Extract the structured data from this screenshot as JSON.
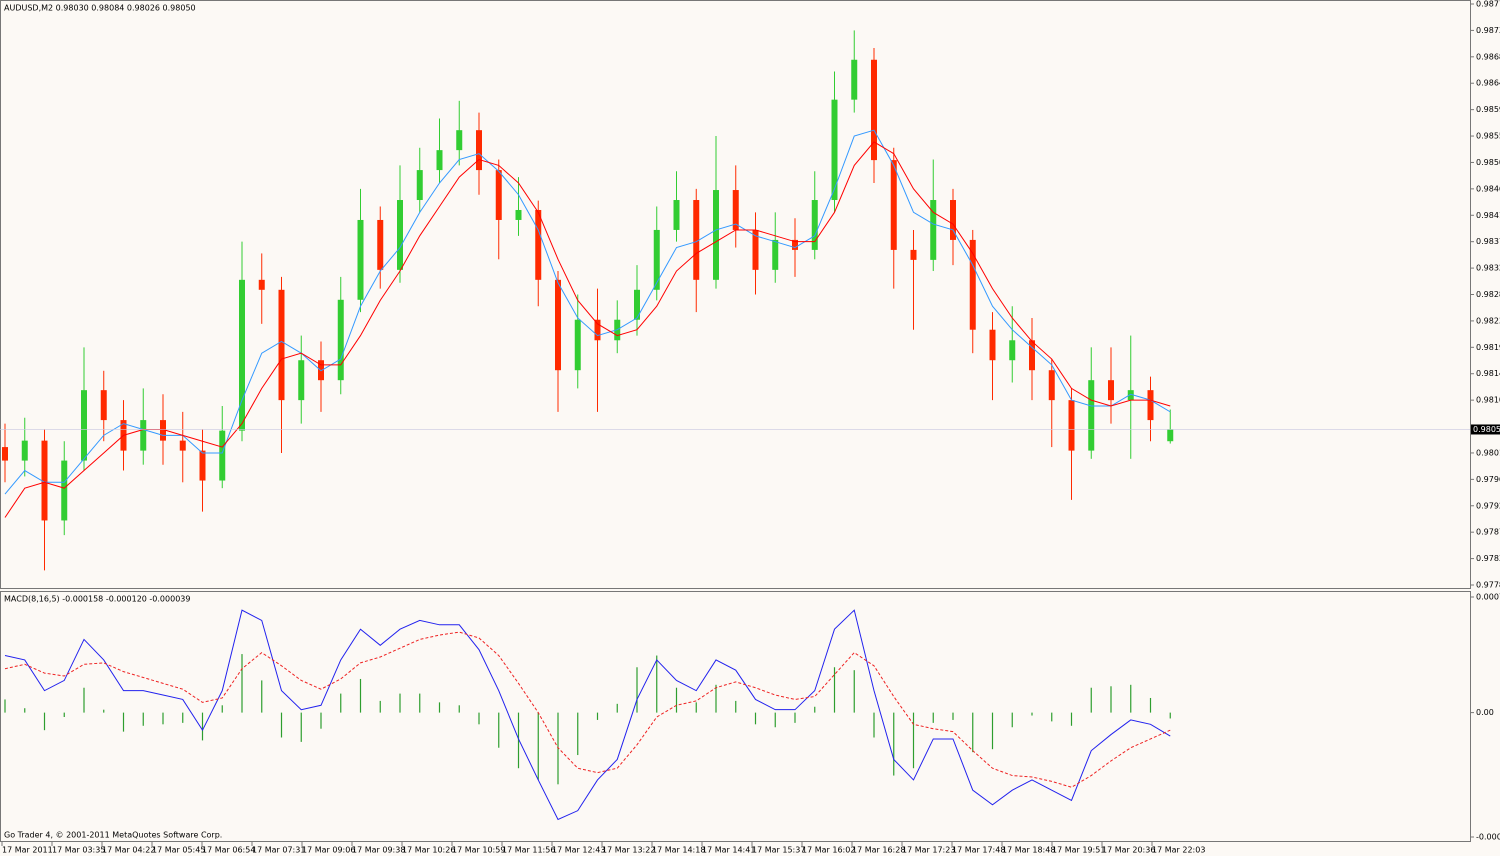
{
  "chart_data": [
    {
      "type": "candlestick",
      "title": "AUDUSD,M2  0.98030 0.98084 0.98026 0.98050",
      "up_color": "#32cd32",
      "down_color": "#ff2a00",
      "open": [
        0.9802,
        0.97997,
        0.98031,
        0.97895,
        0.97997,
        0.98117,
        0.98066,
        0.98014,
        0.98066,
        0.98031,
        0.98014,
        0.97963,
        0.98048,
        0.98305,
        0.98288,
        0.981,
        0.98168,
        0.98134,
        0.98271,
        0.98407,
        0.98322,
        0.98441,
        0.98492,
        0.98526,
        0.9856,
        0.98492,
        0.98407,
        0.98424,
        0.98305,
        0.98151,
        0.98237,
        0.98202,
        0.98237,
        0.98288,
        0.9839,
        0.98441,
        0.98305,
        0.98458,
        0.9839,
        0.98322,
        0.98373,
        0.98356,
        0.98441,
        0.98612,
        0.9868,
        0.98509,
        0.98356,
        0.98339,
        0.98441,
        0.98373,
        0.9822,
        0.98168,
        0.98202,
        0.98151,
        0.981,
        0.98014,
        0.98134,
        0.981,
        0.98117,
        0.9803
      ],
      "high": [
        0.9806,
        0.9807,
        0.9805,
        0.9803,
        0.9819,
        0.9815,
        0.981,
        0.9812,
        0.9811,
        0.9808,
        0.9805,
        0.9809,
        0.9837,
        0.9835,
        0.9831,
        0.9821,
        0.982,
        0.9831,
        0.9846,
        0.9843,
        0.985,
        0.9853,
        0.9858,
        0.9861,
        0.9859,
        0.9851,
        0.9848,
        0.9844,
        0.9832,
        0.9828,
        0.9829,
        0.9827,
        0.9833,
        0.9843,
        0.9849,
        0.9846,
        0.9855,
        0.985,
        0.9842,
        0.9842,
        0.9841,
        0.9849,
        0.9866,
        0.9873,
        0.987,
        0.9853,
        0.9839,
        0.9851,
        0.9846,
        0.9839,
        0.9825,
        0.9826,
        0.9824,
        0.9817,
        0.9812,
        0.9819,
        0.9819,
        0.9821,
        0.9814,
        0.98084
      ],
      "low": [
        0.9796,
        0.9797,
        0.9781,
        0.9787,
        0.9798,
        0.9803,
        0.9798,
        0.9799,
        0.9799,
        0.9796,
        0.9791,
        0.9795,
        0.9803,
        0.9823,
        0.9801,
        0.9806,
        0.9808,
        0.9811,
        0.9825,
        0.9829,
        0.983,
        0.9842,
        0.9847,
        0.985,
        0.9845,
        0.9834,
        0.9838,
        0.9826,
        0.9808,
        0.9812,
        0.9808,
        0.9818,
        0.9821,
        0.9827,
        0.9837,
        0.9825,
        0.9829,
        0.9836,
        0.9828,
        0.983,
        0.9831,
        0.9834,
        0.9842,
        0.9859,
        0.9847,
        0.9829,
        0.9822,
        0.9832,
        0.9833,
        0.9818,
        0.981,
        0.9813,
        0.981,
        0.9802,
        0.9793,
        0.98,
        0.9806,
        0.98,
        0.9803,
        0.98026
      ],
      "close": [
        0.97997,
        0.98031,
        0.97895,
        0.97997,
        0.98117,
        0.98066,
        0.98014,
        0.98066,
        0.98031,
        0.98014,
        0.97963,
        0.98048,
        0.98305,
        0.98288,
        0.981,
        0.98168,
        0.98134,
        0.98271,
        0.98407,
        0.98322,
        0.98441,
        0.98492,
        0.98526,
        0.9856,
        0.98492,
        0.98407,
        0.98424,
        0.98305,
        0.98151,
        0.98237,
        0.98202,
        0.98237,
        0.98288,
        0.9839,
        0.98441,
        0.98305,
        0.98458,
        0.9839,
        0.98322,
        0.98373,
        0.98356,
        0.98441,
        0.98612,
        0.9868,
        0.98509,
        0.98356,
        0.98339,
        0.98441,
        0.98373,
        0.9822,
        0.98168,
        0.98202,
        0.98151,
        0.981,
        0.98014,
        0.98134,
        0.981,
        0.98117,
        0.98066,
        0.9805
      ],
      "lines": [
        {
          "color": "#3399ff",
          "values": [
            0.9794,
            0.9798,
            0.9796,
            0.9796,
            0.98,
            0.9804,
            0.9806,
            0.9805,
            0.9804,
            0.9804,
            0.9801,
            0.9801,
            0.981,
            0.9818,
            0.982,
            0.9818,
            0.9815,
            0.9817,
            0.9826,
            0.9832,
            0.9836,
            0.9842,
            0.9847,
            0.9851,
            0.9852,
            0.9849,
            0.9845,
            0.9839,
            0.983,
            0.9824,
            0.9821,
            0.9822,
            0.9824,
            0.983,
            0.9836,
            0.9837,
            0.9839,
            0.984,
            0.9838,
            0.9837,
            0.9836,
            0.9838,
            0.9846,
            0.9855,
            0.9856,
            0.985,
            0.9842,
            0.984,
            0.9839,
            0.9833,
            0.9826,
            0.9822,
            0.9819,
            0.9816,
            0.981,
            0.9809,
            0.9809,
            0.9811,
            0.981,
            0.9808
          ]
        },
        {
          "color": "#ff0000",
          "values": [
            0.979,
            0.9795,
            0.9796,
            0.9795,
            0.9798,
            0.9801,
            0.9804,
            0.9805,
            0.9805,
            0.9804,
            0.9803,
            0.9802,
            0.9806,
            0.9812,
            0.9817,
            0.9818,
            0.9816,
            0.9816,
            0.9821,
            0.9827,
            0.9832,
            0.9838,
            0.9843,
            0.9848,
            0.9851,
            0.985,
            0.9847,
            0.9842,
            0.9834,
            0.9827,
            0.9823,
            0.9821,
            0.9822,
            0.9826,
            0.9832,
            0.9835,
            0.9837,
            0.9839,
            0.9839,
            0.9838,
            0.9837,
            0.9837,
            0.9842,
            0.985,
            0.9854,
            0.9852,
            0.9846,
            0.9842,
            0.984,
            0.9835,
            0.9829,
            0.9824,
            0.982,
            0.9817,
            0.9812,
            0.981,
            0.9809,
            0.981,
            0.981,
            0.9809
          ]
        }
      ],
      "ylim": [
        0.97785,
        0.98775
      ],
      "yticks": [
        0.98775,
        {
          "value": 0.9873,
          "label": "0.98730"
        },
        0.98685,
        {
          "value": 0.9864,
          "label": "0.98640"
        },
        0.98595,
        {
          "value": 0.9855,
          "label": "0.98550"
        },
        0.98505,
        {
          "value": 0.9846,
          "label": "0.98460"
        },
        0.98415,
        {
          "value": 0.9837,
          "label": "0.98370"
        },
        0.98325,
        {
          "value": 0.9828,
          "label": "0.98280"
        },
        0.98235,
        {
          "value": 0.9819,
          "label": "0.98190"
        },
        0.98145,
        {
          "value": 0.981,
          "label": "0.98100"
        },
        {
          "value": 0.9801,
          "label": "0.98010"
        },
        0.97965,
        {
          "value": 0.9792,
          "label": "0.97920"
        },
        0.97875,
        {
          "value": 0.9783,
          "label": "0.97830"
        },
        0.97785
      ],
      "current_price": {
        "value": 0.9805,
        "label": "0.98050"
      }
    },
    {
      "type": "macd",
      "title": "MACD(8,16,5) -0.000158 -0.000120 -0.000039",
      "histogram": {
        "color": "#2e9e2e",
        "values": [
          9e-05,
          3e-05,
          -0.00012,
          -3e-05,
          0.00017,
          2e-05,
          -0.00013,
          -9e-05,
          -8e-05,
          -7e-05,
          -0.00019,
          5e-05,
          0.0004,
          0.00022,
          -0.00017,
          -0.0002,
          -0.00011,
          0.00013,
          0.00023,
          8e-05,
          0.00013,
          0.00013,
          7e-05,
          5e-05,
          -8e-05,
          -0.00024,
          -0.00038,
          -0.00046,
          -0.00049,
          -0.00029,
          -5e-05,
          6e-05,
          0.00031,
          0.00039,
          0.00017,
          7e-05,
          0.00019,
          8e-05,
          -8e-05,
          -0.0001,
          -7e-05,
          4e-05,
          0.00031,
          0.00029,
          -0.00017,
          -0.00043,
          -0.00038,
          -7e-05,
          -5e-05,
          -0.00027,
          -0.00025,
          -0.0001,
          -2e-05,
          -6e-05,
          -9e-05,
          0.00017,
          0.00018,
          0.00019,
          0.0001,
          -4e-05
        ]
      },
      "lines": [
        {
          "color": "#2222ee",
          "dashed": false,
          "values": [
            0.00039,
            0.00036,
            0.00015,
            0.00022,
            0.0005,
            0.00036,
            0.00015,
            0.00015,
            0.00012,
            9e-05,
            -0.00012,
            0.00015,
            0.0007,
            0.00063,
            0.00015,
            2e-05,
            5e-05,
            0.00036,
            0.00057,
            0.00046,
            0.00057,
            0.00063,
            0.0006,
            0.0006,
            0.00043,
            0.00015,
            -0.00018,
            -0.00046,
            -0.00073,
            -0.00067,
            -0.00046,
            -0.00032,
            9e-05,
            0.00036,
            0.00022,
            0.00015,
            0.00036,
            0.00029,
            9e-05,
            2e-05,
            2e-05,
            0.00015,
            0.00057,
            0.0007,
            0.00015,
            -0.00032,
            -0.00046,
            -0.00018,
            -0.00018,
            -0.00053,
            -0.00063,
            -0.00053,
            -0.00046,
            -0.00053,
            -0.0006,
            -0.00026,
            -0.00015,
            -5e-05,
            -8e-05,
            -0.00016
          ]
        },
        {
          "color": "#ee2222",
          "dashed": true,
          "values": [
            0.0003,
            0.00033,
            0.00027,
            0.00025,
            0.00033,
            0.00034,
            0.00028,
            0.00024,
            0.0002,
            0.00016,
            7e-05,
            0.0001,
            0.0003,
            0.00041,
            0.00032,
            0.00022,
            0.00016,
            0.00023,
            0.00034,
            0.00038,
            0.00044,
            0.0005,
            0.00053,
            0.00055,
            0.00051,
            0.00039,
            0.0002,
            0.0,
            -0.00024,
            -0.00038,
            -0.00041,
            -0.00038,
            -0.00022,
            -3e-05,
            5e-05,
            8e-05,
            0.00017,
            0.00021,
            0.00017,
            0.00012,
            9e-05,
            0.00011,
            0.00026,
            0.00041,
            0.00032,
            0.00011,
            -8e-05,
            -0.00011,
            -0.00013,
            -0.00026,
            -0.00038,
            -0.00043,
            -0.00044,
            -0.00047,
            -0.00051,
            -0.00043,
            -0.00033,
            -0.00024,
            -0.00018,
            -0.00012
          ]
        }
      ],
      "ylim": [
        -0.00085,
        0.00079
      ],
      "yticks": [
        0.00079,
        {
          "value": 0,
          "label": "0.00"
        },
        -0.00085
      ],
      "copyright": "Go Trader 4, © 2001-2011 MetaQuotes Software Corp.",
      "x_labels": [
        "17 Mar 2011",
        "17 Mar 03:35",
        "17 Mar 04:22",
        "17 Mar 05:45",
        "17 Mar 06:54",
        "17 Mar 07:31",
        "17 Mar 09:06",
        "17 Mar 09:38",
        "17 Mar 10:26",
        "17 Mar 10:59",
        "17 Mar 11:56",
        "17 Mar 12:43",
        "17 Mar 13:22",
        "17 Mar 14:18",
        "17 Mar 14:41",
        "17 Mar 15:37",
        "17 Mar 16:02",
        "17 Mar 16:28",
        "17 Mar 17:23",
        "17 Mar 17:48",
        "17 Mar 18:48",
        "17 Mar 19:51",
        "17 Mar 20:36",
        "17 Mar 22:03"
      ]
    }
  ]
}
